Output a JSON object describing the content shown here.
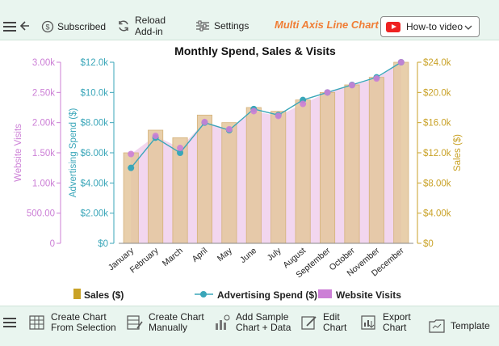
{
  "toolbar": {
    "subscribed_label": "Subscribed",
    "reload_label_1": "Reload",
    "reload_label_2": "Add-in",
    "settings_label": "Settings",
    "chart_type_label": "Multi Axis Line Chart",
    "howto_label": "How-to video"
  },
  "bottom_toolbar": {
    "create_selection_1": "Create Chart",
    "create_selection_2": "From Selection",
    "create_manual_1": "Create Chart",
    "create_manual_2": "Manually",
    "add_sample_1": "Add Sample",
    "add_sample_2": "Chart + Data",
    "edit_1": "Edit",
    "edit_2": "Chart",
    "export_1": "Export",
    "export_2": "Chart",
    "template": "Template"
  },
  "colors": {
    "sales": "#c9a227",
    "spend": "#3aa6b9",
    "visits": "#cc7fd6",
    "sales_fill": "#e4c79c",
    "visits_fill": "#f2d6ef"
  },
  "chart_data": {
    "type": "bar+line+area",
    "title": "Monthly Spend, Sales & Visits",
    "categories": [
      "January",
      "February",
      "March",
      "April",
      "May",
      "June",
      "July",
      "August",
      "September",
      "October",
      "November",
      "December"
    ],
    "axes": {
      "visits": {
        "label": "Website Visits",
        "ticks": [
          "0",
          "500.00",
          "1.00k",
          "1.50k",
          "2.00k",
          "2.50k",
          "3.00k"
        ],
        "range": [
          0,
          3000
        ]
      },
      "spend": {
        "label": "Advertising Spend ($)",
        "ticks": [
          "$0",
          "$2.00k",
          "$4.00k",
          "$6.00k",
          "$8.00k",
          "$10.0k",
          "$12.0k"
        ],
        "range": [
          0,
          12000
        ]
      },
      "sales": {
        "label": "Sales ($)",
        "ticks": [
          "$0",
          "$4.00k",
          "$8.00k",
          "$12.0k",
          "$16.0k",
          "$20.0k",
          "$24.0k"
        ],
        "range": [
          0,
          24000
        ]
      }
    },
    "series": [
      {
        "name": "Sales ($)",
        "type": "bar",
        "axis": "sales",
        "values": [
          12000,
          15000,
          14000,
          17000,
          16000,
          18000,
          17500,
          19000,
          20000,
          21000,
          22000,
          24000
        ]
      },
      {
        "name": "Advertising Spend ($)",
        "type": "line",
        "axis": "spend",
        "values": [
          5000,
          7000,
          6000,
          8000,
          7500,
          8900,
          8500,
          9500,
          10000,
          10500,
          11000,
          12000
        ]
      },
      {
        "name": "Website Visits",
        "type": "area",
        "axis": "visits",
        "values": [
          1480,
          1780,
          1580,
          2010,
          1890,
          2190,
          2110,
          2310,
          2500,
          2620,
          2730,
          3000
        ]
      }
    ],
    "legend": [
      "Sales ($)",
      "Advertising Spend ($)",
      "Website Visits"
    ],
    "legend_position": "bottom"
  }
}
